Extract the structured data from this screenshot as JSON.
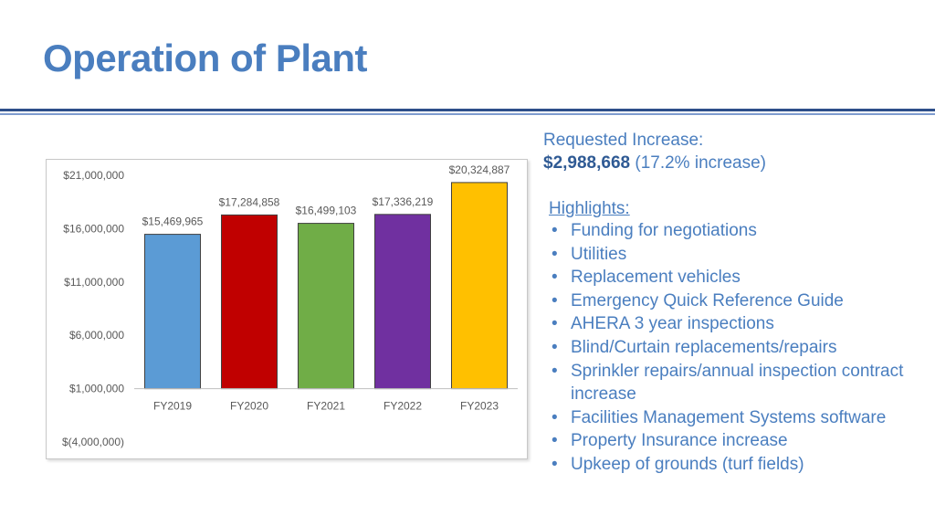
{
  "slide": {
    "title": "Operation of Plant",
    "requested_label": "Requested Increase:",
    "requested_amount": "$2,988,668",
    "requested_pct": "(17.2% increase)",
    "highlights_label": "Highlights:",
    "highlights": [
      "Funding for negotiations",
      "Utilities",
      "Replacement vehicles",
      "Emergency Quick Reference Guide",
      "AHERA 3 year inspections",
      "Blind/Curtain replacements/repairs",
      "Sprinkler repairs/annual inspection contract increase",
      "Facilities Management Systems software",
      "Property Insurance increase",
      "Upkeep of grounds (turf fields)"
    ],
    "colors": {
      "title": "#4a7ebf",
      "text": "#4a7ebf",
      "rule_dark": "#2e4f8a",
      "rule_light": "#7f9ccf"
    }
  },
  "chart_data": {
    "type": "bar",
    "categories": [
      "FY2019",
      "FY2020",
      "FY2021",
      "FY2022",
      "FY2023"
    ],
    "values": [
      15469965,
      17284858,
      16499103,
      17336219,
      20324887
    ],
    "data_labels": [
      "$15,469,965",
      "$17,284,858",
      "$16,499,103",
      "$17,336,219",
      "$20,324,887"
    ],
    "colors": [
      "#5b9bd5",
      "#c00000",
      "#70ad47",
      "#7030a0",
      "#ffc000"
    ],
    "y_ticks": [
      21000000,
      16000000,
      11000000,
      6000000,
      1000000,
      -4000000
    ],
    "y_tick_labels": [
      "$21,000,000",
      "$16,000,000",
      "$11,000,000",
      "$6,000,000",
      "$1,000,000",
      "$(4,000,000)"
    ],
    "ylim": [
      -4000000,
      21000000
    ],
    "baseline": 1000000,
    "grid": false,
    "legend": "none"
  }
}
